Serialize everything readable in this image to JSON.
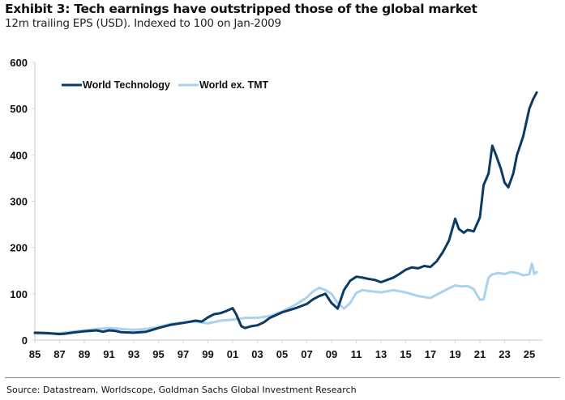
{
  "header": {
    "title": "Exhibit 3: Tech earnings have outstripped those of the global market",
    "subtitle": "12m trailing EPS (USD). Indexed to 100 on Jan-2009"
  },
  "footer": {
    "source": "Source: Datastream, Worldscope, Goldman Sachs Global Investment Research"
  },
  "chart_data": {
    "type": "line",
    "title": "Exhibit 3: Tech earnings have outstripped those of the global market",
    "subtitle": "12m trailing EPS (USD). Indexed to 100 on Jan-2009",
    "xlabel": "",
    "ylabel": "",
    "xlim": [
      1985,
      2025.9
    ],
    "ylim": [
      0,
      600
    ],
    "yticks": [
      0,
      100,
      200,
      300,
      400,
      500,
      600
    ],
    "ytick_labels": [
      "0",
      "100",
      "200",
      "300",
      "400",
      "500",
      "600"
    ],
    "xticks": [
      1985,
      1987,
      1989,
      1991,
      1993,
      1995,
      1997,
      1999,
      2001,
      2003,
      2005,
      2007,
      2009,
      2011,
      2013,
      2015,
      2017,
      2019,
      2021,
      2023,
      2025
    ],
    "xtick_labels": [
      "85",
      "87",
      "89",
      "91",
      "93",
      "95",
      "97",
      "99",
      "01",
      "03",
      "05",
      "07",
      "09",
      "11",
      "13",
      "15",
      "17",
      "19",
      "21",
      "23",
      "25"
    ],
    "grid": false,
    "legend_position": "top-left",
    "colors": {
      "World Technology": "#0b3a64",
      "World ex. TMT": "#a9d2f0"
    },
    "series": [
      {
        "name": "World Technology",
        "x": [
          1985.0,
          1986.0,
          1987.0,
          1987.5,
          1988.0,
          1989.0,
          1990.0,
          1990.5,
          1991.0,
          1991.5,
          1992.0,
          1993.0,
          1994.0,
          1995.0,
          1996.0,
          1997.0,
          1998.0,
          1998.5,
          1999.0,
          1999.5,
          2000.0,
          2000.5,
          2001.0,
          2001.3,
          2001.7,
          2002.0,
          2002.5,
          2003.0,
          2003.5,
          2004.0,
          2005.0,
          2006.0,
          2007.0,
          2007.5,
          2008.0,
          2008.5,
          2009.0,
          2009.5,
          2010.0,
          2010.5,
          2011.0,
          2011.5,
          2012.0,
          2012.5,
          2013.0,
          2013.5,
          2014.0,
          2014.5,
          2015.0,
          2015.5,
          2016.0,
          2016.5,
          2017.0,
          2017.5,
          2018.0,
          2018.5,
          2019.0,
          2019.3,
          2019.7,
          2020.0,
          2020.5,
          2021.0,
          2021.3,
          2021.7,
          2022.0,
          2022.3,
          2022.7,
          2023.0,
          2023.3,
          2023.7,
          2024.0,
          2024.5,
          2025.0,
          2025.3,
          2025.6
        ],
        "values": [
          16,
          15,
          13,
          14,
          16,
          19,
          21,
          18,
          21,
          20,
          17,
          16,
          18,
          26,
          33,
          37,
          42,
          40,
          49,
          56,
          58,
          63,
          69,
          55,
          30,
          26,
          30,
          32,
          38,
          48,
          60,
          68,
          78,
          88,
          95,
          100,
          80,
          68,
          108,
          128,
          137,
          135,
          132,
          130,
          125,
          130,
          135,
          143,
          152,
          157,
          155,
          160,
          158,
          170,
          190,
          215,
          262,
          240,
          232,
          238,
          235,
          265,
          335,
          360,
          420,
          400,
          370,
          340,
          330,
          360,
          400,
          440,
          500,
          520,
          535
        ]
      },
      {
        "name": "World ex. TMT",
        "x": [
          1985.0,
          1986.0,
          1987.0,
          1988.0,
          1989.0,
          1990.0,
          1991.0,
          1992.0,
          1993.0,
          1994.0,
          1995.0,
          1996.0,
          1997.0,
          1998.0,
          1999.0,
          2000.0,
          2001.0,
          2002.0,
          2003.0,
          2004.0,
          2005.0,
          2006.0,
          2007.0,
          2007.5,
          2008.0,
          2008.5,
          2009.0,
          2009.5,
          2010.0,
          2010.5,
          2011.0,
          2011.5,
          2012.0,
          2013.0,
          2014.0,
          2015.0,
          2016.0,
          2017.0,
          2018.0,
          2018.5,
          2019.0,
          2019.5,
          2020.0,
          2020.5,
          2021.0,
          2021.3,
          2021.7,
          2022.0,
          2022.5,
          2023.0,
          2023.5,
          2024.0,
          2024.5,
          2025.0,
          2025.2,
          2025.4,
          2025.6
        ],
        "values": [
          14,
          14,
          15,
          18,
          21,
          24,
          26,
          24,
          22,
          24,
          28,
          35,
          38,
          40,
          36,
          42,
          44,
          48,
          48,
          52,
          62,
          75,
          92,
          105,
          113,
          108,
          100,
          80,
          68,
          80,
          102,
          108,
          106,
          103,
          108,
          103,
          95,
          91,
          105,
          112,
          118,
          116,
          117,
          110,
          87,
          88,
          135,
          142,
          145,
          143,
          147,
          145,
          140,
          142,
          165,
          143,
          147
        ]
      }
    ]
  }
}
